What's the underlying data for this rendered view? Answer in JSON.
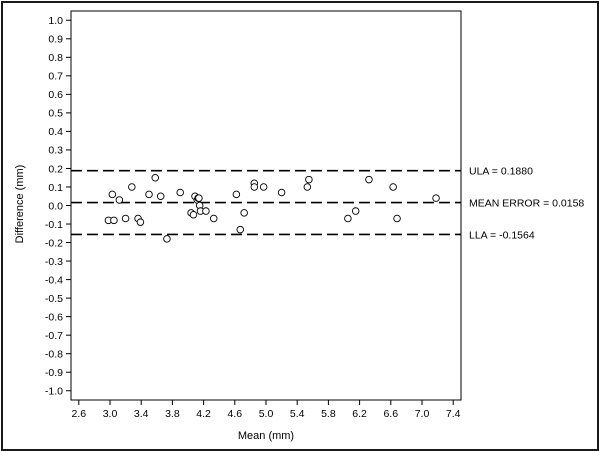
{
  "chart_data": {
    "type": "scatter",
    "xlabel": "Mean (mm)",
    "ylabel": "Difference (mm)",
    "xlim": [
      2.5,
      7.5
    ],
    "ylim": [
      -1.05,
      1.05
    ],
    "x_ticks": [
      2.6,
      3.0,
      3.4,
      3.8,
      4.2,
      4.6,
      5.0,
      5.4,
      5.8,
      6.2,
      6.6,
      7.0,
      7.4
    ],
    "x_tick_labels": [
      "2.6",
      "3.0",
      "3.4",
      "3.8",
      "4.2",
      "4.6",
      "5.0",
      "5.4",
      "5.8",
      "6.2",
      "6.6",
      "7.0",
      "7.4"
    ],
    "y_ticks": [
      1.0,
      0.9,
      0.8,
      0.7,
      0.6,
      0.5,
      0.4,
      0.3,
      0.2,
      0.1,
      0.0,
      -0.1,
      -0.2,
      -0.3,
      -0.4,
      -0.5,
      -0.6,
      -0.7,
      -0.8,
      -0.9,
      -1.0
    ],
    "y_tick_labels": [
      "1.0",
      "0.9",
      "0.8",
      "0.7",
      "0.6",
      "0.5",
      "0.4",
      "0.3",
      "0.2",
      "0.1",
      "0.0",
      "-0.1",
      "-0.2",
      "-0.3",
      "-0.4",
      "-0.5",
      "-0.6",
      "-0.7",
      "-0.8",
      "-0.9",
      "-1.0"
    ],
    "grid": false,
    "reference_lines": [
      {
        "value": 0.188,
        "label": "ULA = 0.1880",
        "style": "dashed"
      },
      {
        "value": 0.0158,
        "label": "MEAN ERROR = 0.0158",
        "style": "dashed"
      },
      {
        "value": -0.1564,
        "label": "LLA = -0.1564",
        "style": "dashed"
      }
    ],
    "points": [
      {
        "x": 2.98,
        "y": -0.08
      },
      {
        "x": 3.03,
        "y": 0.06
      },
      {
        "x": 3.05,
        "y": -0.08
      },
      {
        "x": 3.12,
        "y": 0.03
      },
      {
        "x": 3.2,
        "y": -0.07
      },
      {
        "x": 3.28,
        "y": 0.1
      },
      {
        "x": 3.36,
        "y": -0.07
      },
      {
        "x": 3.39,
        "y": -0.09
      },
      {
        "x": 3.5,
        "y": 0.06
      },
      {
        "x": 3.58,
        "y": 0.15
      },
      {
        "x": 3.65,
        "y": 0.05
      },
      {
        "x": 3.73,
        "y": -0.18
      },
      {
        "x": 3.9,
        "y": 0.07
      },
      {
        "x": 4.04,
        "y": -0.04
      },
      {
        "x": 4.07,
        "y": -0.05
      },
      {
        "x": 4.09,
        "y": 0.05
      },
      {
        "x": 4.12,
        "y": 0.03
      },
      {
        "x": 4.13,
        "y": 0.04
      },
      {
        "x": 4.14,
        "y": 0.04
      },
      {
        "x": 4.15,
        "y": 0.0
      },
      {
        "x": 4.16,
        "y": -0.03
      },
      {
        "x": 4.23,
        "y": -0.03
      },
      {
        "x": 4.33,
        "y": -0.07
      },
      {
        "x": 4.62,
        "y": 0.06
      },
      {
        "x": 4.67,
        "y": -0.13
      },
      {
        "x": 4.72,
        "y": -0.04
      },
      {
        "x": 4.85,
        "y": 0.12
      },
      {
        "x": 4.85,
        "y": 0.1
      },
      {
        "x": 4.97,
        "y": 0.1
      },
      {
        "x": 5.2,
        "y": 0.07
      },
      {
        "x": 5.53,
        "y": 0.1
      },
      {
        "x": 5.55,
        "y": 0.14
      },
      {
        "x": 6.05,
        "y": -0.07
      },
      {
        "x": 6.15,
        "y": -0.03
      },
      {
        "x": 6.32,
        "y": 0.14
      },
      {
        "x": 6.63,
        "y": 0.1
      },
      {
        "x": 6.68,
        "y": -0.07
      },
      {
        "x": 7.18,
        "y": 0.04
      }
    ]
  }
}
